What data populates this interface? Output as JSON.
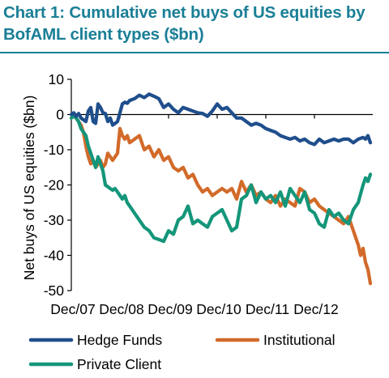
{
  "chart_data": {
    "type": "line",
    "title": "Chart 1: Cumulative net buys of US equities by BofAML client types ($bn)",
    "ylabel": "Net buys of US equities ($bn)",
    "xlabel": "",
    "ylim": [
      -50,
      10
    ],
    "yticks": [
      10,
      0,
      -10,
      -20,
      -30,
      -40,
      -50
    ],
    "ytick_labels": [
      "10",
      "0",
      "-10",
      "-20",
      "-30",
      "-40",
      "-50"
    ],
    "xlim": [
      0,
      6.2
    ],
    "xticks": [
      0,
      1,
      2,
      3,
      4,
      5
    ],
    "xtick_labels": [
      "Dec/07",
      "Dec/08",
      "Dec/09",
      "Dec/10",
      "Dec/11",
      "Dec/12"
    ],
    "grid": false,
    "legend_position": "bottom",
    "series": [
      {
        "name": "Hedge Funds",
        "color": "#1f4e8c",
        "x": [
          0,
          0.05,
          0.1,
          0.15,
          0.2,
          0.25,
          0.3,
          0.35,
          0.4,
          0.45,
          0.5,
          0.55,
          0.6,
          0.65,
          0.7,
          0.75,
          0.8,
          0.85,
          0.9,
          0.95,
          1.0,
          1.05,
          1.1,
          1.15,
          1.2,
          1.3,
          1.4,
          1.5,
          1.6,
          1.7,
          1.8,
          1.9,
          2.0,
          2.1,
          2.2,
          2.3,
          2.4,
          2.5,
          2.6,
          2.7,
          2.8,
          2.9,
          3.0,
          3.1,
          3.2,
          3.3,
          3.4,
          3.5,
          3.6,
          3.7,
          3.8,
          3.9,
          4.0,
          4.1,
          4.2,
          4.3,
          4.4,
          4.5,
          4.6,
          4.7,
          4.8,
          4.9,
          5.0,
          5.1,
          5.2,
          5.3,
          5.4,
          5.5,
          5.6,
          5.7,
          5.8,
          5.9,
          6.0,
          6.05,
          6.1,
          6.15
        ],
        "values": [
          0,
          0.5,
          -0.5,
          0.3,
          -1,
          -1.5,
          -2,
          1,
          2,
          -2,
          -2.5,
          3,
          2,
          0.5,
          0.3,
          -2,
          -1,
          -3,
          -2.5,
          -2,
          0.5,
          3,
          3.5,
          3.2,
          4,
          4.5,
          5.5,
          4.8,
          5.8,
          5.2,
          4.5,
          2,
          3,
          1.5,
          0.5,
          2,
          1.5,
          1,
          0.5,
          0.3,
          -0.5,
          1,
          3,
          1.5,
          2,
          0.5,
          -1,
          -1,
          -2,
          -3,
          -2.5,
          -3,
          -4,
          -4.5,
          -5,
          -6,
          -6.5,
          -7,
          -6.5,
          -7.5,
          -7,
          -8,
          -8.5,
          -7,
          -8,
          -7.5,
          -7,
          -7.5,
          -7,
          -7,
          -8,
          -7,
          -6.5,
          -7,
          -6,
          -8
        ]
      },
      {
        "name": "Institutional",
        "color": "#d26a2a",
        "x": [
          0,
          0.05,
          0.1,
          0.15,
          0.2,
          0.25,
          0.3,
          0.35,
          0.4,
          0.45,
          0.5,
          0.55,
          0.6,
          0.65,
          0.7,
          0.75,
          0.8,
          0.85,
          0.9,
          0.95,
          1.0,
          1.05,
          1.1,
          1.15,
          1.2,
          1.3,
          1.4,
          1.5,
          1.6,
          1.7,
          1.8,
          1.9,
          2.0,
          2.1,
          2.2,
          2.3,
          2.4,
          2.5,
          2.6,
          2.7,
          2.8,
          2.9,
          3.0,
          3.1,
          3.2,
          3.3,
          3.4,
          3.5,
          3.6,
          3.7,
          3.8,
          3.9,
          4.0,
          4.1,
          4.2,
          4.3,
          4.4,
          4.5,
          4.6,
          4.7,
          4.8,
          4.9,
          5.0,
          5.1,
          5.2,
          5.3,
          5.4,
          5.5,
          5.6,
          5.7,
          5.8,
          5.9,
          5.95,
          6.0,
          6.05,
          6.1,
          6.15
        ],
        "values": [
          -1,
          0,
          -1,
          -2,
          -3,
          -5,
          -9,
          -12,
          -14,
          -13,
          -15,
          -14,
          -13,
          -15,
          -14,
          -11,
          -12,
          -13,
          -12,
          -11,
          -4,
          -6,
          -7,
          -6,
          -8,
          -7,
          -6,
          -10,
          -9,
          -12,
          -10,
          -13,
          -12,
          -15,
          -16,
          -15,
          -18,
          -17,
          -20,
          -22,
          -21,
          -23,
          -22,
          -21,
          -22,
          -21,
          -24,
          -19,
          -22,
          -20,
          -23,
          -22,
          -24,
          -25,
          -23,
          -26,
          -24,
          -25,
          -26,
          -21,
          -22,
          -25,
          -24,
          -26,
          -27,
          -28,
          -29,
          -30,
          -31,
          -29,
          -33,
          -37,
          -40,
          -38,
          -42,
          -44,
          -48
        ]
      },
      {
        "name": "Private Client",
        "color": "#14967a",
        "x": [
          0,
          0.05,
          0.1,
          0.15,
          0.2,
          0.25,
          0.3,
          0.35,
          0.4,
          0.45,
          0.5,
          0.55,
          0.6,
          0.65,
          0.7,
          0.75,
          0.8,
          0.85,
          0.9,
          0.95,
          1.0,
          1.05,
          1.1,
          1.15,
          1.2,
          1.3,
          1.4,
          1.5,
          1.6,
          1.7,
          1.8,
          1.9,
          2.0,
          2.1,
          2.2,
          2.3,
          2.4,
          2.5,
          2.6,
          2.7,
          2.8,
          2.9,
          3.0,
          3.1,
          3.2,
          3.3,
          3.4,
          3.5,
          3.6,
          3.7,
          3.8,
          3.9,
          4.0,
          4.1,
          4.2,
          4.3,
          4.4,
          4.5,
          4.6,
          4.7,
          4.8,
          4.9,
          5.0,
          5.1,
          5.2,
          5.3,
          5.4,
          5.5,
          5.6,
          5.7,
          5.8,
          5.9,
          6.0,
          6.05,
          6.1,
          6.15
        ],
        "values": [
          -1,
          -0.5,
          -1,
          -2,
          -4,
          -5,
          -6,
          -9,
          -11,
          -13,
          -15,
          -12,
          -14,
          -16,
          -20,
          -20.5,
          -21,
          -21.5,
          -21,
          -22,
          -23,
          -24,
          -23,
          -25,
          -26,
          -28,
          -30,
          -32,
          -33,
          -35,
          -35.5,
          -36,
          -33,
          -34,
          -30,
          -29,
          -26,
          -31,
          -30,
          -31,
          -32,
          -29,
          -28,
          -27,
          -30,
          -33,
          -32,
          -24,
          -23,
          -20,
          -25,
          -22,
          -24,
          -23,
          -25,
          -22,
          -26,
          -21,
          -23,
          -25,
          -22,
          -27,
          -28,
          -31,
          -32,
          -27,
          -29,
          -28,
          -30,
          -31,
          -27,
          -25,
          -20,
          -18,
          -19,
          -17
        ]
      }
    ]
  }
}
